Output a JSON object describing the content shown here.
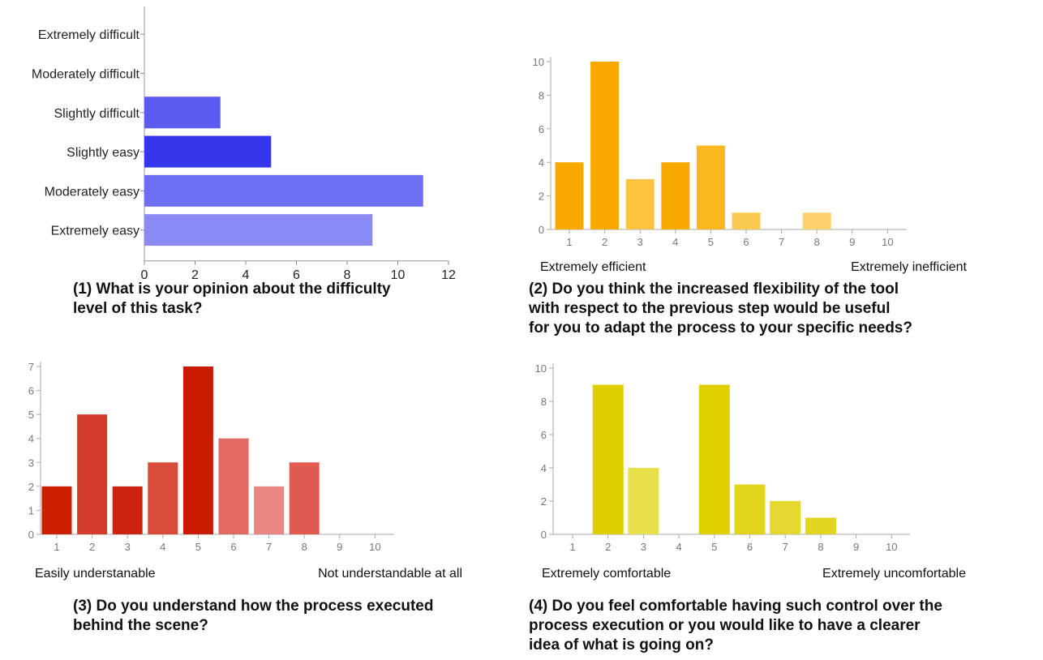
{
  "chart_data": [
    {
      "type": "bar",
      "orientation": "horizontal",
      "categories": [
        "Extremely difficult",
        "Moderately difficult",
        "Slightly difficult",
        "Slightly easy",
        "Moderately easy",
        "Extremely easy"
      ],
      "values": [
        0,
        0,
        3,
        5,
        11,
        9
      ],
      "bar_colors": [
        "#5a5cf0",
        "#5a5cf0",
        "#5a5cf0",
        "#3535ec",
        "#6e6ef4",
        "#8a8af6"
      ],
      "xlim": [
        0,
        12
      ],
      "xticks": [
        "0",
        "2",
        "4",
        "6",
        "8",
        "10",
        "12"
      ],
      "grid": false,
      "caption": [
        "(1) What is your opinion about the difficulty",
        "level of this task?"
      ]
    },
    {
      "type": "bar",
      "categories": [
        "1",
        "2",
        "3",
        "4",
        "5",
        "6",
        "7",
        "8",
        "9",
        "10"
      ],
      "values": [
        4,
        10,
        3,
        4,
        5,
        1,
        0,
        1,
        0,
        0
      ],
      "bar_colors": [
        "#f9a800",
        "#f9a800",
        "#fbc340",
        "#f9a800",
        "#fbb720",
        "#fcca50",
        "#fcca50",
        "#fcd06a",
        "#fcd06a",
        "#fcd06a"
      ],
      "ylim": [
        0,
        10
      ],
      "yticks": [
        "0",
        "2",
        "4",
        "6",
        "8",
        "10"
      ],
      "scale_left": "Extremely efficient",
      "scale_right": "Extremely inefficient",
      "grid": false,
      "caption": [
        "(2) Do you think the increased flexibility of the tool",
        "with respect to the previous step would be useful",
        "for you to adapt the process to your specific needs?"
      ]
    },
    {
      "type": "bar",
      "categories": [
        "1",
        "2",
        "3",
        "4",
        "5",
        "6",
        "7",
        "8",
        "9",
        "10"
      ],
      "values": [
        2,
        5,
        2,
        3,
        7,
        4,
        2,
        3,
        0,
        0
      ],
      "bar_colors": [
        "#cc1f00",
        "#d63a2a",
        "#cc2410",
        "#d84a3a",
        "#cc1a00",
        "#e06a62",
        "#e88684",
        "#e05a50",
        "#e05a50",
        "#e05a50"
      ],
      "ylim": [
        0,
        7
      ],
      "yticks": [
        "0",
        "1",
        "2",
        "3",
        "4",
        "5",
        "6",
        "7"
      ],
      "scale_left": "Easily understanable",
      "scale_right": "Not understandable at all",
      "grid": false,
      "caption": [
        "(3) Do you understand how the process executed",
        "behind the scene?"
      ]
    },
    {
      "type": "bar",
      "categories": [
        "1",
        "2",
        "3",
        "4",
        "5",
        "6",
        "7",
        "8",
        "9",
        "10"
      ],
      "values": [
        0,
        9,
        4,
        0,
        9,
        3,
        2,
        1,
        0,
        0
      ],
      "bar_colors": [
        "#dece00",
        "#dece00",
        "#e8e04a",
        "#dece00",
        "#e0d000",
        "#e2d41a",
        "#e4d830",
        "#e2d420",
        "#e2d420",
        "#e2d420"
      ],
      "ylim": [
        0,
        10
      ],
      "yticks": [
        "0",
        "2",
        "4",
        "6",
        "8",
        "10"
      ],
      "scale_left": "Extremely comfortable",
      "scale_right": "Extremely uncomfortable",
      "grid": false,
      "caption": [
        "(4) Do you feel comfortable having such control over the",
        "process execution or you would like to have a clearer",
        "idea of what is going on?"
      ]
    }
  ]
}
